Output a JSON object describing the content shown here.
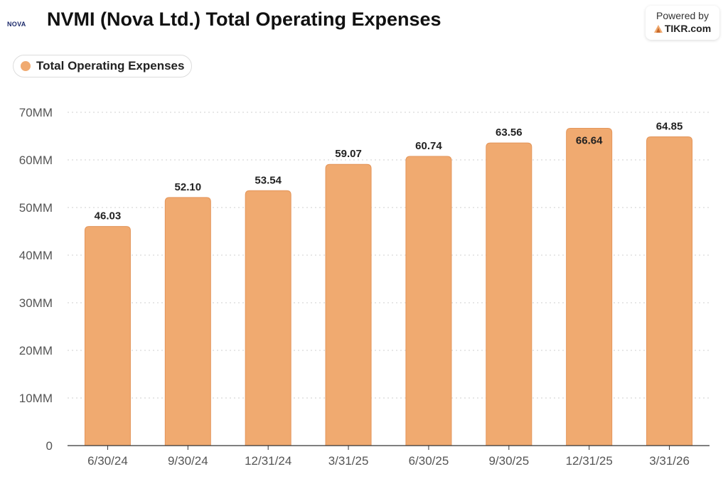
{
  "header": {
    "logo_text": "NOVA",
    "title": "NVMI (Nova Ltd.) Total Operating Expenses",
    "powered_by": "Powered by",
    "brand": "TIKR.com"
  },
  "legend": {
    "label": "Total Operating Expenses",
    "color": "#f0aa70"
  },
  "chart_data": {
    "type": "bar",
    "title": "NVMI (Nova Ltd.) Total Operating Expenses",
    "categories": [
      "6/30/24",
      "9/30/24",
      "12/31/24",
      "3/31/25",
      "6/30/25",
      "9/30/25",
      "12/31/25",
      "3/31/26"
    ],
    "series": [
      {
        "name": "Total Operating Expenses",
        "values": [
          46.03,
          52.1,
          53.54,
          59.07,
          60.74,
          63.56,
          66.64,
          64.85
        ],
        "labels": [
          "46.03",
          "52.10",
          "53.54",
          "59.07",
          "60.74",
          "63.56",
          "66.64",
          "64.85"
        ]
      }
    ],
    "ylim": [
      0,
      70
    ],
    "yticks": [
      0,
      10,
      20,
      30,
      40,
      50,
      60,
      70
    ],
    "ytick_labels": [
      "0",
      "10MM",
      "20MM",
      "30MM",
      "40MM",
      "50MM",
      "60MM",
      "70MM"
    ],
    "grid": true,
    "bar_color": "#f0aa70",
    "bar_stroke": "#e3955a",
    "legend_position": "top-left"
  }
}
